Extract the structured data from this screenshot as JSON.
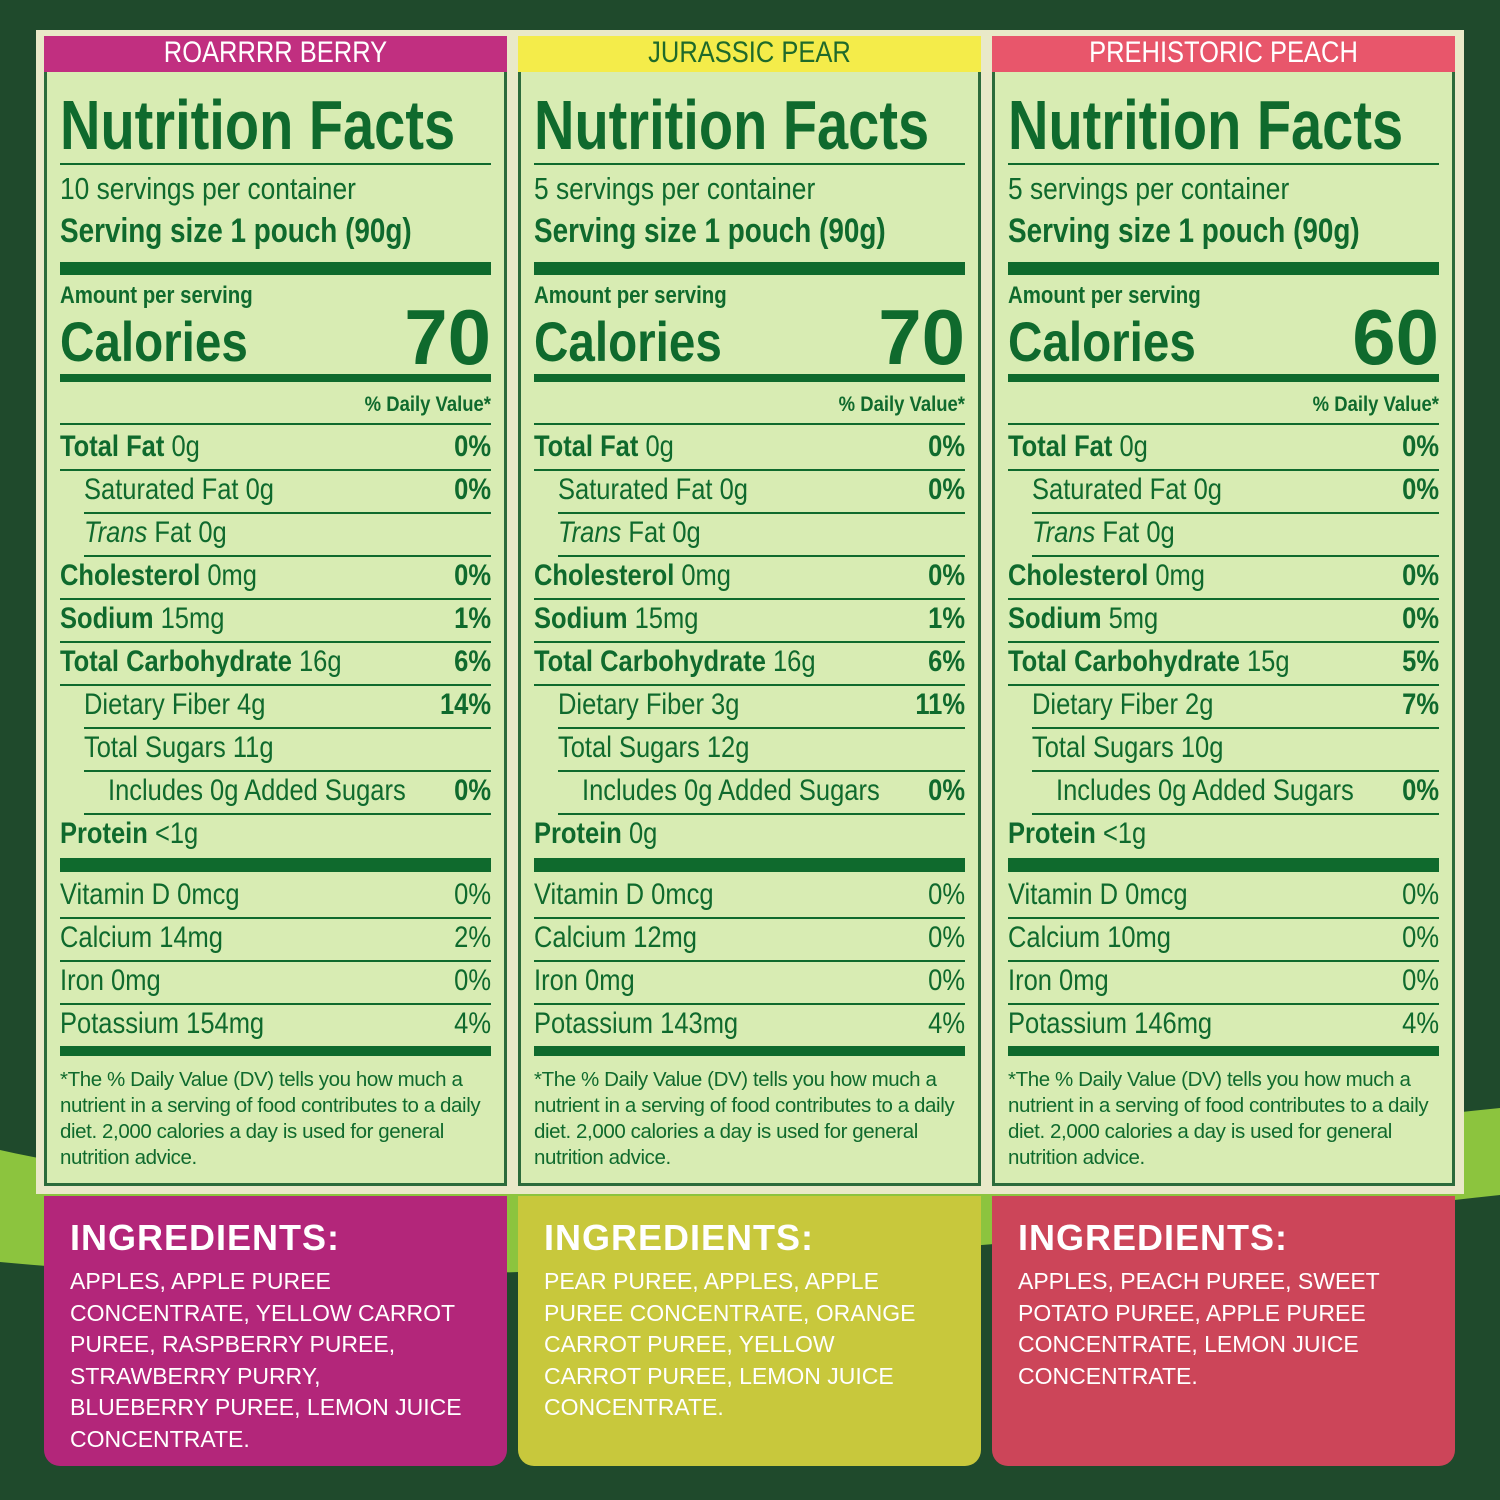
{
  "labels": {
    "title": "Nutrition Facts",
    "amount_per_serving": "Amount per serving",
    "calories": "Calories",
    "daily_value": "% Daily Value*",
    "footnote": "*The % Daily Value (DV) tells you how much a nutrient in a serving of food contributes to a daily diet. 2,000 calories a day is used for general nutrition advice.",
    "ingredients": "INGREDIENTS:"
  },
  "panels": [
    {
      "flavor": "ROARRRR BERRY",
      "servings": "10 servings per container",
      "serving_size": "Serving size 1 pouch (90g)",
      "calories": 70,
      "rows": [
        {
          "name": "Total Fat",
          "amount": "0g",
          "dv": "0%"
        },
        {
          "name": "Saturated Fat",
          "amount": "0g",
          "dv": "0%"
        },
        {
          "name_italic": "Trans",
          "name": "Fat",
          "amount": "0g"
        },
        {
          "name": "Cholesterol",
          "amount": "0mg",
          "dv": "0%"
        },
        {
          "name": "Sodium",
          "amount": "15mg",
          "dv": "1%"
        },
        {
          "name": "Total Carbohydrate",
          "amount": "16g",
          "dv": "6%"
        },
        {
          "name": "Dietary Fiber",
          "amount": "4g",
          "dv": "14%"
        },
        {
          "name": "Total Sugars",
          "amount": "11g"
        },
        {
          "name": "Includes 0g Added Sugars",
          "dv": "0%"
        },
        {
          "name": "Protein",
          "amount": "<1g"
        }
      ],
      "vitamins": [
        {
          "name": "Vitamin D",
          "amount": "0mcg",
          "dv": "0%"
        },
        {
          "name": "Calcium",
          "amount": "14mg",
          "dv": "2%"
        },
        {
          "name": "Iron",
          "amount": "0mg",
          "dv": "0%"
        },
        {
          "name": "Potassium",
          "amount": "154mg",
          "dv": "4%"
        }
      ],
      "ingredients": "APPLES, APPLE PUREE CONCENTRATE, YELLOW CARROT PUREE, RASPBERRY PUREE, STRAWBERRY PURRY, BLUEBERRY PUREE, LEMON JUICE CONCENTRATE."
    },
    {
      "flavor": "JURASSIC PEAR",
      "servings": "5 servings per container",
      "serving_size": "Serving size 1 pouch (90g)",
      "calories": 70,
      "rows": [
        {
          "name": "Total Fat",
          "amount": "0g",
          "dv": "0%"
        },
        {
          "name": "Saturated Fat",
          "amount": "0g",
          "dv": "0%"
        },
        {
          "name_italic": "Trans",
          "name": "Fat",
          "amount": "0g"
        },
        {
          "name": "Cholesterol",
          "amount": "0mg",
          "dv": "0%"
        },
        {
          "name": "Sodium",
          "amount": "15mg",
          "dv": "1%"
        },
        {
          "name": "Total Carbohydrate",
          "amount": "16g",
          "dv": "6%"
        },
        {
          "name": "Dietary Fiber",
          "amount": "3g",
          "dv": "11%"
        },
        {
          "name": "Total Sugars",
          "amount": "12g"
        },
        {
          "name": "Includes 0g Added Sugars",
          "dv": "0%"
        },
        {
          "name": "Protein",
          "amount": "0g"
        }
      ],
      "vitamins": [
        {
          "name": "Vitamin D",
          "amount": "0mcg",
          "dv": "0%"
        },
        {
          "name": "Calcium",
          "amount": "12mg",
          "dv": "0%"
        },
        {
          "name": "Iron",
          "amount": "0mg",
          "dv": "0%"
        },
        {
          "name": "Potassium",
          "amount": "143mg",
          "dv": "4%"
        }
      ],
      "ingredients": "PEAR PUREE, APPLES, APPLE PUREE CONCENTRATE, ORANGE CARROT PUREE, YELLOW CARROT PUREE, LEMON JUICE CONCENTRATE."
    },
    {
      "flavor": "PREHISTORIC PEACH",
      "servings": "5 servings per container",
      "serving_size": "Serving size 1 pouch (90g)",
      "calories": 60,
      "rows": [
        {
          "name": "Total Fat",
          "amount": "0g",
          "dv": "0%"
        },
        {
          "name": "Saturated Fat",
          "amount": "0g",
          "dv": "0%"
        },
        {
          "name_italic": "Trans",
          "name": "Fat",
          "amount": "0g"
        },
        {
          "name": "Cholesterol",
          "amount": "0mg",
          "dv": "0%"
        },
        {
          "name": "Sodium",
          "amount": "5mg",
          "dv": "0%"
        },
        {
          "name": "Total Carbohydrate",
          "amount": "15g",
          "dv": "5%"
        },
        {
          "name": "Dietary Fiber",
          "amount": "2g",
          "dv": "7%"
        },
        {
          "name": "Total Sugars",
          "amount": "10g"
        },
        {
          "name": "Includes 0g Added Sugars",
          "dv": "0%"
        },
        {
          "name": "Protein",
          "amount": "<1g"
        }
      ],
      "vitamins": [
        {
          "name": "Vitamin D",
          "amount": "0mcg",
          "dv": "0%"
        },
        {
          "name": "Calcium",
          "amount": "10mg",
          "dv": "0%"
        },
        {
          "name": "Iron",
          "amount": "0mg",
          "dv": "0%"
        },
        {
          "name": "Potassium",
          "amount": "146mg",
          "dv": "4%"
        }
      ],
      "ingredients": "APPLES, PEACH PUREE, SWEET POTATO PUREE, APPLE PUREE CONCENTRATE, LEMON JUICE CONCENTRATE."
    }
  ]
}
